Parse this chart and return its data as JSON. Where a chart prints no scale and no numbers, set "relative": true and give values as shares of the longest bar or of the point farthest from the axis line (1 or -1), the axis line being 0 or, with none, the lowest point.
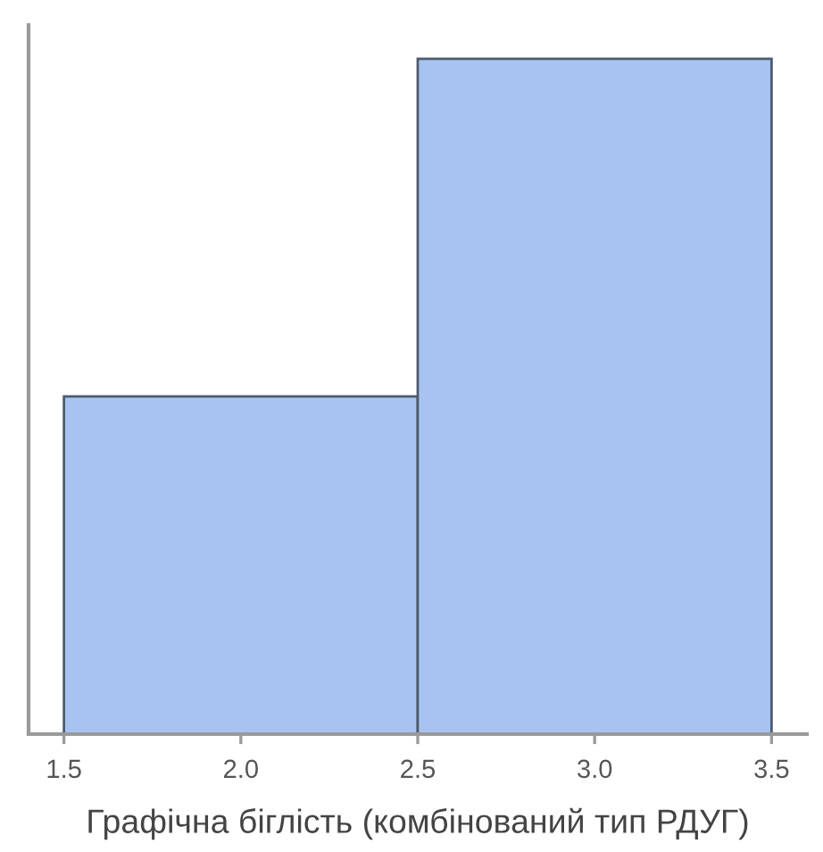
{
  "chart_data": {
    "type": "bar",
    "xlabel": "Графічна біглість (комбінований тип РДУГ)",
    "x": [
      2,
      3
    ],
    "values": [
      0.5,
      1
    ],
    "relative": true,
    "color": "#a7c4f0",
    "xlim": [
      1.4,
      3.6
    ],
    "xticks": [
      {
        "value": 1.5,
        "label": "1.5"
      },
      {
        "value": 2,
        "label": "2.0"
      },
      {
        "value": 2.5,
        "label": "2.5"
      },
      {
        "value": 3,
        "label": "3.0"
      },
      {
        "value": 3.5,
        "label": "3.5"
      }
    ],
    "tick_labels": "x"
  }
}
